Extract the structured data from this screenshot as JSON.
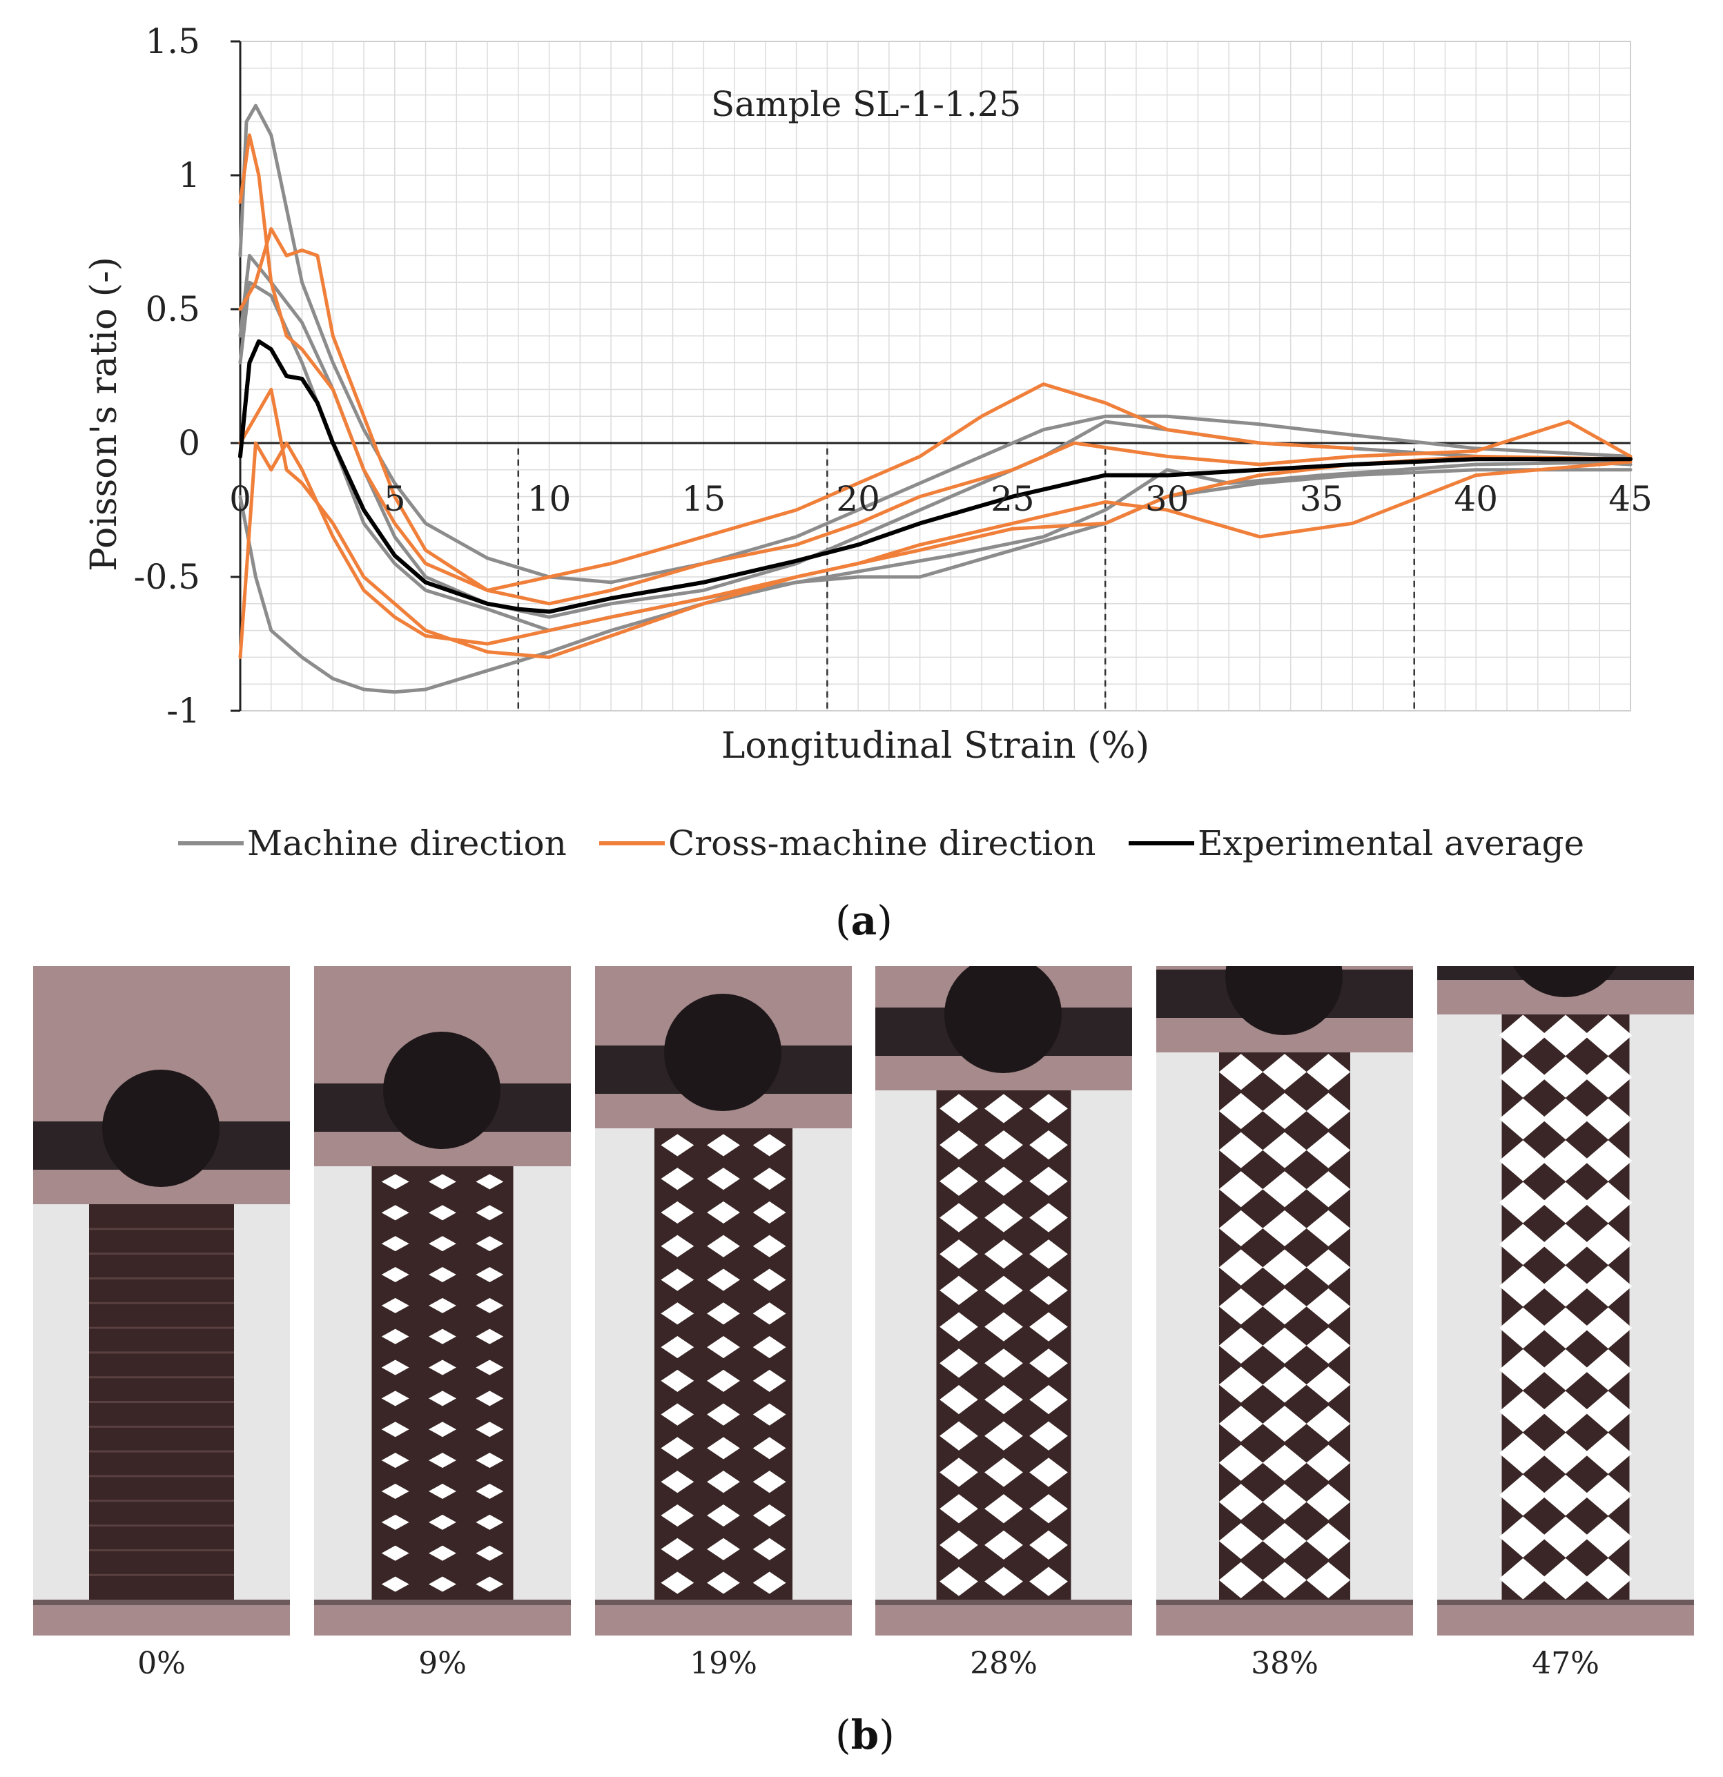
{
  "chart_data": {
    "type": "line",
    "annotation": "Sample SL-1-1.25",
    "xlabel": "Longitudinal Strain (%)",
    "ylabel": "Poisson's ratio (-)",
    "xlim": [
      0,
      45
    ],
    "ylim": [
      -1,
      1.5
    ],
    "xticks": [
      "0",
      "5",
      "10",
      "15",
      "20",
      "25",
      "30",
      "35",
      "40",
      "45"
    ],
    "yticks": [
      "1.5",
      "1",
      "0.5",
      "0",
      "-0.5",
      "-1"
    ],
    "grid": true,
    "legend_position": "bottom",
    "legend": [
      "Machine direction",
      "Cross-machine direction",
      "Experimental average"
    ],
    "stage_markers_x": [
      9,
      19,
      28,
      38
    ],
    "series": [
      {
        "name": "Machine direction",
        "color": "#8c8c8c",
        "x": [
          0,
          0.2,
          0.5,
          1,
          2,
          3,
          4,
          5,
          6,
          8,
          10,
          12,
          15,
          18,
          20,
          22,
          24,
          26,
          28,
          30,
          33,
          36,
          40,
          45
        ],
        "y": [
          0.7,
          1.2,
          1.26,
          1.15,
          0.6,
          0.3,
          0.05,
          -0.15,
          -0.3,
          -0.43,
          -0.5,
          -0.52,
          -0.45,
          -0.35,
          -0.25,
          -0.15,
          -0.05,
          0.05,
          0.1,
          0.1,
          0.07,
          0.03,
          -0.02,
          -0.05
        ]
      },
      {
        "name": "Machine direction",
        "color": "#8c8c8c",
        "x": [
          0,
          0.3,
          1,
          2,
          3,
          4,
          5,
          6,
          8,
          10,
          12,
          15,
          18,
          20,
          23,
          26,
          28,
          30,
          33,
          36,
          40,
          45
        ],
        "y": [
          0.4,
          0.7,
          0.6,
          0.45,
          0.2,
          -0.1,
          -0.35,
          -0.5,
          -0.6,
          -0.65,
          -0.6,
          -0.55,
          -0.45,
          -0.35,
          -0.2,
          -0.05,
          0.08,
          0.05,
          0.0,
          -0.02,
          -0.05,
          -0.08
        ]
      },
      {
        "name": "Machine direction",
        "color": "#8c8c8c",
        "x": [
          0,
          0.3,
          1,
          2,
          3,
          4,
          5,
          6,
          8,
          10,
          12,
          15,
          18,
          20,
          22,
          25,
          28,
          30,
          33,
          36,
          40,
          45
        ],
        "y": [
          0.3,
          0.6,
          0.55,
          0.3,
          0.0,
          -0.3,
          -0.45,
          -0.55,
          -0.62,
          -0.7,
          -0.65,
          -0.58,
          -0.52,
          -0.5,
          -0.5,
          -0.4,
          -0.3,
          -0.2,
          -0.15,
          -0.12,
          -0.1,
          -0.1
        ]
      },
      {
        "name": "Machine direction",
        "color": "#8c8c8c",
        "x": [
          0,
          0.5,
          1,
          2,
          3,
          4,
          5,
          6,
          8,
          10,
          12,
          15,
          18,
          20,
          23,
          26,
          28,
          30,
          32,
          35,
          40,
          45
        ],
        "y": [
          -0.2,
          -0.5,
          -0.7,
          -0.8,
          -0.88,
          -0.92,
          -0.93,
          -0.92,
          -0.85,
          -0.78,
          -0.7,
          -0.6,
          -0.52,
          -0.48,
          -0.42,
          -0.35,
          -0.25,
          -0.1,
          -0.15,
          -0.12,
          -0.08,
          -0.07
        ]
      },
      {
        "name": "Cross-machine direction",
        "color": "#f07f3a",
        "x": [
          0,
          0.3,
          0.6,
          1,
          1.5,
          2,
          3,
          4,
          5,
          6,
          8,
          10,
          12,
          15,
          18,
          20,
          22,
          24,
          26,
          28,
          30,
          33,
          36
        ],
        "y": [
          0.9,
          1.15,
          1.0,
          0.6,
          0.4,
          0.35,
          0.2,
          -0.1,
          -0.3,
          -0.45,
          -0.55,
          -0.5,
          -0.45,
          -0.35,
          -0.25,
          -0.15,
          -0.05,
          0.1,
          0.22,
          0.15,
          0.05,
          0.0,
          -0.02
        ]
      },
      {
        "name": "Cross-machine direction",
        "color": "#f07f3a",
        "x": [
          0,
          0.5,
          1,
          1.5,
          2,
          2.5,
          3,
          4,
          5,
          6,
          8,
          10,
          12,
          15,
          18,
          20,
          22,
          25,
          27,
          30,
          33,
          36,
          40,
          43,
          45
        ],
        "y": [
          0.5,
          0.6,
          0.8,
          0.7,
          0.72,
          0.7,
          0.4,
          0.1,
          -0.2,
          -0.4,
          -0.55,
          -0.6,
          -0.55,
          -0.45,
          -0.38,
          -0.3,
          -0.2,
          -0.1,
          0.0,
          -0.05,
          -0.08,
          -0.05,
          -0.03,
          0.08,
          -0.05
        ]
      },
      {
        "name": "Cross-machine direction",
        "color": "#f07f3a",
        "x": [
          0,
          0.5,
          1,
          1.5,
          2,
          3,
          4,
          5,
          6,
          8,
          10,
          12,
          15,
          18,
          20,
          22,
          25,
          28,
          30,
          33,
          36,
          40,
          45
        ],
        "y": [
          0.0,
          0.1,
          0.2,
          -0.1,
          -0.15,
          -0.3,
          -0.5,
          -0.6,
          -0.7,
          -0.78,
          -0.8,
          -0.72,
          -0.6,
          -0.5,
          -0.45,
          -0.38,
          -0.3,
          -0.22,
          -0.25,
          -0.35,
          -0.3,
          -0.12,
          -0.07
        ]
      },
      {
        "name": "Cross-machine direction",
        "color": "#f07f3a",
        "x": [
          0,
          0.5,
          1,
          1.5,
          2,
          3,
          4,
          5,
          6,
          8,
          10,
          12,
          15,
          18,
          20,
          22,
          25,
          28,
          30,
          33,
          36,
          40,
          45
        ],
        "y": [
          -0.8,
          0.0,
          -0.1,
          0.0,
          -0.1,
          -0.35,
          -0.55,
          -0.65,
          -0.72,
          -0.75,
          -0.7,
          -0.65,
          -0.58,
          -0.5,
          -0.45,
          -0.4,
          -0.32,
          -0.3,
          -0.2,
          -0.12,
          -0.08,
          -0.05,
          -0.06
        ]
      },
      {
        "name": "Experimental average",
        "color": "#000000",
        "x": [
          0,
          0.3,
          0.6,
          1,
          1.5,
          2,
          2.5,
          3,
          4,
          5,
          6,
          8,
          9,
          10,
          12,
          15,
          18,
          20,
          22,
          25,
          28,
          30,
          33,
          36,
          40,
          45
        ],
        "y": [
          -0.05,
          0.3,
          0.38,
          0.35,
          0.25,
          0.24,
          0.15,
          0.0,
          -0.25,
          -0.42,
          -0.52,
          -0.6,
          -0.62,
          -0.63,
          -0.58,
          -0.52,
          -0.44,
          -0.38,
          -0.3,
          -0.2,
          -0.12,
          -0.12,
          -0.1,
          -0.08,
          -0.06,
          -0.06
        ]
      }
    ]
  },
  "captions": {
    "a": "a",
    "b": "b"
  },
  "panels": [
    "0%",
    "9%",
    "19%",
    "28%",
    "38%",
    "47%"
  ]
}
